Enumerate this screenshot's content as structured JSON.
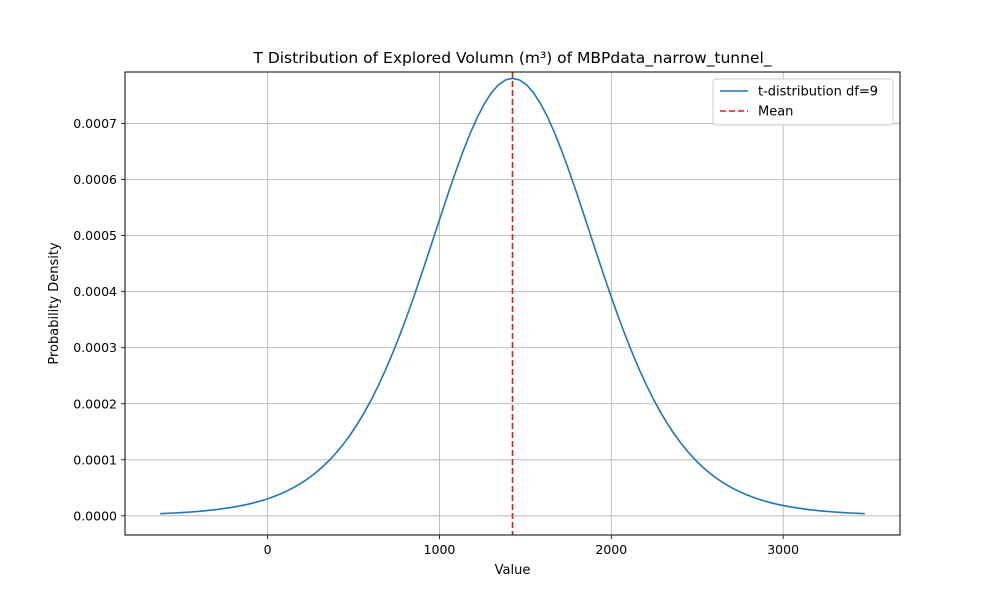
{
  "chart_data": {
    "type": "line",
    "title": "T Distribution of Explored Volumn (m³) of MBPdata_narrow_tunnel_",
    "xlabel": "Value",
    "ylabel": "Probability Density",
    "xlim": [
      -830,
      3680
    ],
    "ylim": [
      -3.42e-05,
      0.000792
    ],
    "xticks": [
      0,
      1000,
      2000,
      3000
    ],
    "xtick_labels": [
      "0",
      "1000",
      "2000",
      "3000"
    ],
    "yticks": [
      0,
      0.0001,
      0.0002,
      0.0003,
      0.0004,
      0.0005,
      0.0006,
      0.0007
    ],
    "ytick_labels": [
      "0.0000",
      "0.0001",
      "0.0002",
      "0.0003",
      "0.0004",
      "0.0005",
      "0.0006",
      "0.0007"
    ],
    "grid": true,
    "legend_position": "top-right",
    "series": [
      {
        "name": "t-distribution df=9",
        "color": "#1f77b4",
        "line_style": "solid",
        "distribution": {
          "df": 9,
          "loc": 1425,
          "scale": 497
        },
        "x_range": [
          -625,
          3475
        ]
      }
    ],
    "vlines": [
      {
        "name": "Mean",
        "x": 1425,
        "color": "#e41a1c",
        "line_style": "dashed"
      }
    ]
  }
}
